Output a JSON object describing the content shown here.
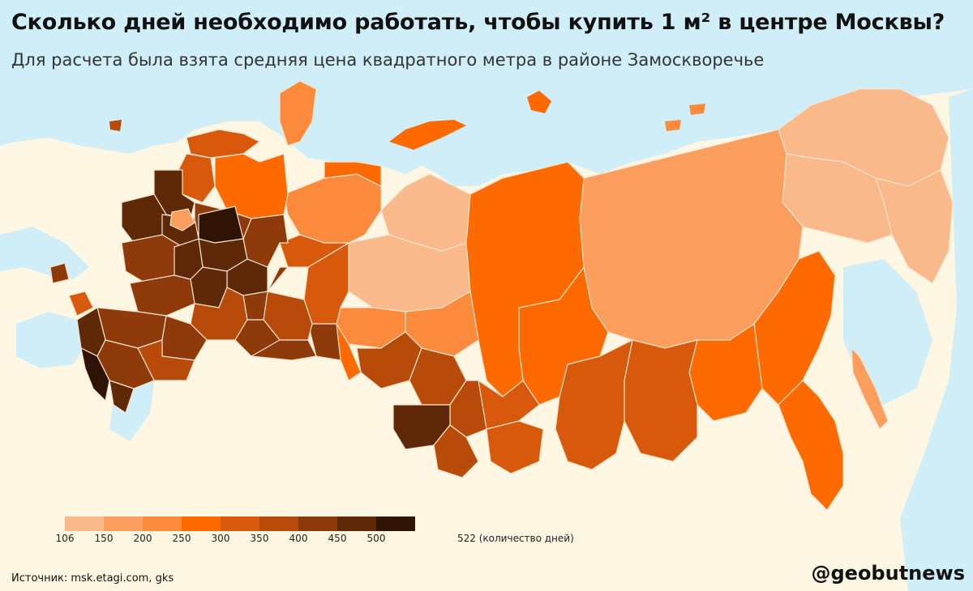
{
  "title": "Сколько дней необходимо работать, чтобы купить 1 м² в центре Москвы?",
  "subtitle": "Для расчета была взята средняя цена квадратного метра в районе Замоскворечье",
  "legend": {
    "colors": [
      "#f9b98a",
      "#fb9d5c",
      "#fc8a3c",
      "#ff6a00",
      "#d9590c",
      "#b84a0a",
      "#8f3a0a",
      "#5f2908",
      "#2f1405"
    ],
    "ticks": [
      "106",
      "150",
      "200",
      "250",
      "300",
      "350",
      "400",
      "450",
      "500"
    ],
    "max_label": "522",
    "unit": "(количество дней)"
  },
  "source": "Источник: msk.etagi.com, gks",
  "credit": "@geobutnews",
  "map_colors": {
    "sea": "#cfeef8",
    "land_foreign": "#fdf6e3",
    "border": "#f4e4cc"
  }
}
